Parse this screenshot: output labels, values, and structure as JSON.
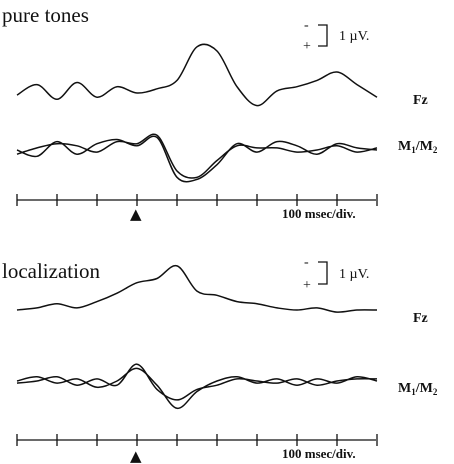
{
  "chart_data": [
    {
      "type": "line",
      "title": "pure tones",
      "scale_label": "1 µV.",
      "polarity_labels": [
        "-",
        "+"
      ],
      "time_axis_label": "100 msec/div.",
      "stimulus_marker": "▲",
      "stimulus_onset_ms": 0,
      "x_unit": "ms",
      "x": [
        -300,
        -250,
        -200,
        -150,
        -100,
        -50,
        0,
        50,
        100,
        150,
        200,
        250,
        300,
        350,
        400,
        450,
        500,
        550,
        600
      ],
      "channels": [
        {
          "label": "Fz",
          "series": [
            {
              "values": [
                -0.1,
                0.4,
                -0.3,
                0.5,
                -0.2,
                0.3,
                0.0,
                0.2,
                0.6,
                2.2,
                2.0,
                0.3,
                -0.6,
                0.1,
                0.3,
                0.6,
                1.0,
                0.4,
                -0.2
              ]
            }
          ]
        },
        {
          "label": "M1/M2",
          "label_main": "M",
          "label_sub1": "1",
          "label_mid": "/M",
          "label_sub2": "2",
          "series": [
            {
              "values": [
                0.0,
                -0.3,
                0.4,
                -0.2,
                0.3,
                0.5,
                0.2,
                0.6,
                -1.3,
                -1.4,
                -0.7,
                0.3,
                -0.1,
                0.4,
                0.2,
                -0.2,
                0.3,
                0.1,
                0.0
              ]
            },
            {
              "values": [
                -0.2,
                0.1,
                0.3,
                0.2,
                -0.1,
                0.4,
                0.3,
                0.7,
                -1.0,
                -1.3,
                -0.5,
                0.2,
                0.1,
                0.1,
                -0.1,
                0.0,
                0.2,
                -0.1,
                0.1
              ]
            }
          ]
        }
      ]
    },
    {
      "type": "line",
      "title": "localization",
      "scale_label": "1 µV.",
      "polarity_labels": [
        "-",
        "+"
      ],
      "time_axis_label": "100 msec/div.",
      "stimulus_marker": "▲",
      "stimulus_onset_ms": 0,
      "x_unit": "ms",
      "x": [
        -300,
        -250,
        -200,
        -150,
        -100,
        -50,
        0,
        50,
        100,
        150,
        200,
        250,
        300,
        350,
        400,
        450,
        500,
        550,
        600
      ],
      "channels": [
        {
          "label": "Fz",
          "series": [
            {
              "values": [
                0.0,
                0.1,
                0.3,
                0.1,
                0.4,
                0.8,
                1.3,
                1.5,
                2.1,
                0.9,
                0.7,
                0.4,
                0.3,
                0.1,
                0.0,
                0.1,
                -0.1,
                0.0,
                0.0
              ]
            }
          ]
        },
        {
          "label": "M1/M2",
          "label_main": "M",
          "label_sub1": "1",
          "label_mid": "/M",
          "label_sub2": "2",
          "series": [
            {
              "values": [
                0.0,
                0.2,
                -0.1,
                0.1,
                -0.3,
                0.0,
                0.6,
                -0.2,
                -1.3,
                -0.5,
                0.0,
                0.2,
                -0.1,
                0.1,
                -0.2,
                0.1,
                -0.1,
                0.2,
                0.0
              ]
            },
            {
              "values": [
                -0.1,
                0.0,
                0.2,
                -0.2,
                0.1,
                -0.2,
                0.8,
                -0.4,
                -0.9,
                -0.4,
                -0.2,
                0.1,
                0.0,
                -0.1,
                0.1,
                -0.2,
                0.0,
                0.1,
                0.1
              ]
            }
          ]
        }
      ]
    }
  ]
}
